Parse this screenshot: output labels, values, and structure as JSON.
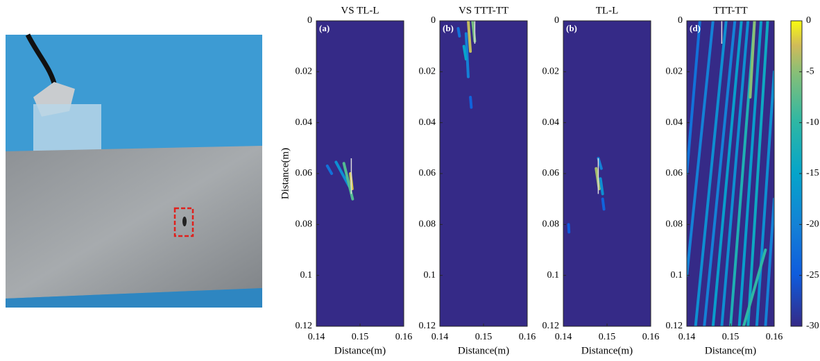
{
  "chart_data": [
    {
      "type": "heatmap",
      "title": "VS TL-L",
      "panel_label": "(a)",
      "xlabel": "Distance(m)",
      "ylabel": "Distance(m)",
      "xlim": [
        0.14,
        0.16
      ],
      "ylim": [
        0,
        0.12
      ],
      "y_inverted": true,
      "xticks": [
        0.14,
        0.15,
        0.16
      ],
      "yticks": [
        0,
        0.02,
        0.04,
        0.06,
        0.08,
        0.1,
        0.12
      ],
      "spots": [
        {
          "x0": 0.1445,
          "y0": 0.0555,
          "x1": 0.1475,
          "y1": 0.065,
          "value": -18
        },
        {
          "x0": 0.1463,
          "y0": 0.056,
          "x1": 0.1483,
          "y1": 0.07,
          "value": -8
        },
        {
          "x0": 0.1425,
          "y0": 0.057,
          "x1": 0.1435,
          "y1": 0.06,
          "value": -22
        },
        {
          "x0": 0.1478,
          "y0": 0.06,
          "x1": 0.1482,
          "y1": 0.066,
          "value": -2
        }
      ],
      "marker": {
        "x": 0.148,
        "y0": 0.054,
        "y1": 0.068
      }
    },
    {
      "type": "heatmap",
      "title": "VS TTT-TT",
      "panel_label": "(b)",
      "xlabel": "Distance(m)",
      "xlim": [
        0.14,
        0.16
      ],
      "ylim": [
        0,
        0.12
      ],
      "y_inverted": true,
      "xticks": [
        0.14,
        0.15,
        0.16
      ],
      "yticks": [
        0,
        0.02,
        0.04,
        0.06,
        0.08,
        0.1,
        0.12
      ],
      "spots": [
        {
          "x0": 0.146,
          "y0": 0.005,
          "x1": 0.1465,
          "y1": 0.022,
          "value": -20
        },
        {
          "x0": 0.1455,
          "y0": 0.01,
          "x1": 0.146,
          "y1": 0.015,
          "value": -15
        },
        {
          "x0": 0.1465,
          "y0": 0,
          "x1": 0.147,
          "y1": 0.012,
          "value": -3
        },
        {
          "x0": 0.1475,
          "y0": 0,
          "x1": 0.148,
          "y1": 0.008,
          "value": -6
        },
        {
          "x0": 0.147,
          "y0": 0.03,
          "x1": 0.1472,
          "y1": 0.034,
          "value": -24
        },
        {
          "x0": 0.1442,
          "y0": 0.003,
          "x1": 0.1445,
          "y1": 0.006,
          "value": -22
        }
      ],
      "marker": {
        "x": 0.148,
        "y0": 0,
        "y1": 0.009
      }
    },
    {
      "type": "heatmap",
      "title": "TL-L",
      "panel_label": "(b)",
      "xlabel": "Distance(m)",
      "xlim": [
        0.14,
        0.16
      ],
      "ylim": [
        0,
        0.12
      ],
      "y_inverted": true,
      "xticks": [
        0.14,
        0.15,
        0.16
      ],
      "yticks": [
        0,
        0.02,
        0.04,
        0.06,
        0.08,
        0.1,
        0.12
      ],
      "spots": [
        {
          "x0": 0.148,
          "y0": 0.054,
          "x1": 0.1487,
          "y1": 0.058,
          "value": -20
        },
        {
          "x0": 0.1485,
          "y0": 0.062,
          "x1": 0.149,
          "y1": 0.068,
          "value": -18
        },
        {
          "x0": 0.1475,
          "y0": 0.058,
          "x1": 0.1482,
          "y1": 0.066,
          "value": -4
        },
        {
          "x0": 0.149,
          "y0": 0.07,
          "x1": 0.1493,
          "y1": 0.074,
          "value": -24
        },
        {
          "x0": 0.1412,
          "y0": 0.08,
          "x1": 0.1413,
          "y1": 0.083,
          "value": -25
        }
      ],
      "marker": {
        "x": 0.148,
        "y0": 0.054,
        "y1": 0.068
      }
    },
    {
      "type": "heatmap",
      "title": "TTT-TT",
      "panel_label": "(d)",
      "xlabel": "Distance(m)",
      "xlim": [
        0.14,
        0.16
      ],
      "ylim": [
        0,
        0.12
      ],
      "y_inverted": true,
      "xticks": [
        0.14,
        0.15,
        0.16
      ],
      "yticks": [
        0,
        0.02,
        0.04,
        0.06,
        0.08,
        0.1,
        0.12
      ],
      "spots": [
        {
          "x0": 0.143,
          "y0": 0,
          "x1": 0.14,
          "y1": 0.06,
          "value": -22
        },
        {
          "x0": 0.146,
          "y0": 0,
          "x1": 0.14,
          "y1": 0.1,
          "value": -20
        },
        {
          "x0": 0.149,
          "y0": 0,
          "x1": 0.142,
          "y1": 0.12,
          "value": -18
        },
        {
          "x0": 0.151,
          "y0": 0,
          "x1": 0.144,
          "y1": 0.12,
          "value": -20
        },
        {
          "x0": 0.1525,
          "y0": 0,
          "x1": 0.146,
          "y1": 0.12,
          "value": -16
        },
        {
          "x0": 0.154,
          "y0": 0,
          "x1": 0.148,
          "y1": 0.12,
          "value": -18
        },
        {
          "x0": 0.1555,
          "y0": 0,
          "x1": 0.15,
          "y1": 0.12,
          "value": -12
        },
        {
          "x0": 0.157,
          "y0": 0,
          "x1": 0.152,
          "y1": 0.12,
          "value": -16
        },
        {
          "x0": 0.1585,
          "y0": 0,
          "x1": 0.154,
          "y1": 0.12,
          "value": -14
        },
        {
          "x0": 0.16,
          "y0": 0.02,
          "x1": 0.156,
          "y1": 0.12,
          "value": -18
        },
        {
          "x0": 0.16,
          "y0": 0.07,
          "x1": 0.158,
          "y1": 0.12,
          "value": -20
        },
        {
          "x0": 0.1555,
          "y0": 0,
          "x1": 0.1545,
          "y1": 0.03,
          "value": -5
        },
        {
          "x0": 0.158,
          "y0": 0.09,
          "x1": 0.153,
          "y1": 0.12,
          "value": -10
        }
      ],
      "marker": {
        "x": 0.148,
        "y0": 0,
        "y1": 0.009
      },
      "colorbar": {
        "clim": [
          -30,
          0
        ],
        "ticks": [
          0,
          -5,
          -10,
          -15,
          -20,
          -25,
          -30
        ]
      }
    }
  ]
}
